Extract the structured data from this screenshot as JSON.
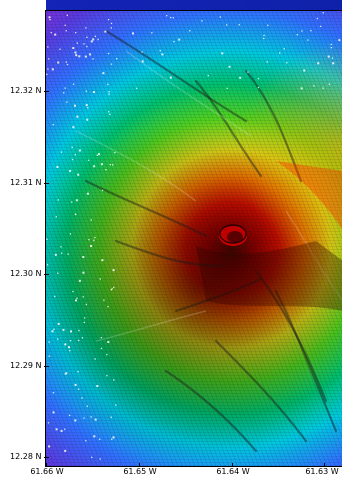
{
  "map": {
    "latitude_labels": [
      "12.32 N",
      "12.31 N",
      "12.30 N",
      "12.29 N",
      "12.28 N"
    ],
    "longitude_labels": [
      "61.66 W",
      "61.65 W",
      "61.64 W",
      "61.63 W"
    ],
    "colormap": [
      "#8b1fd6",
      "#3355ff",
      "#00c8e8",
      "#00d060",
      "#d8e020",
      "#ff8a00",
      "#e00000",
      "#5a0a00"
    ],
    "summit_color": "#d40000"
  }
}
